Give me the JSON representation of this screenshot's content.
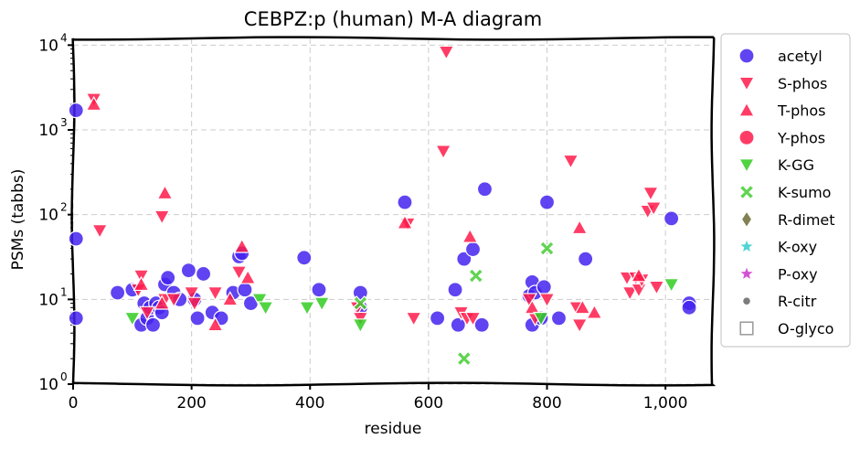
{
  "chart_data": {
    "type": "scatter",
    "title": "CEBPZ:p (human) M-A diagram",
    "xlabel": "residue",
    "ylabel": "PSMs (tabbs)",
    "xlim": [
      0,
      1080
    ],
    "ylim": [
      1,
      12000
    ],
    "yscale": "log",
    "grid": true,
    "legend_position": "outside-right",
    "x_ticks": [
      0,
      200,
      400,
      600,
      800,
      1000
    ],
    "x_tick_labels": [
      "0",
      "200",
      "400",
      "600",
      "800",
      "1,000"
    ],
    "y_ticks": [
      1,
      10,
      100,
      1000,
      10000
    ],
    "y_tick_labels": [
      "10",
      "10",
      "10",
      "10",
      "10"
    ],
    "y_tick_exponents": [
      "0",
      "1",
      "2",
      "3",
      "4"
    ],
    "series": [
      {
        "name": "acetyl",
        "marker": "circle",
        "color": "#4422ee",
        "points": [
          [
            5,
            1700
          ],
          [
            5,
            52
          ],
          [
            5,
            6
          ],
          [
            75,
            12
          ],
          [
            100,
            13
          ],
          [
            115,
            5
          ],
          [
            120,
            9
          ],
          [
            125,
            6
          ],
          [
            130,
            8
          ],
          [
            135,
            5
          ],
          [
            140,
            9
          ],
          [
            145,
            8
          ],
          [
            150,
            7
          ],
          [
            155,
            15
          ],
          [
            160,
            18
          ],
          [
            170,
            12
          ],
          [
            180,
            10
          ],
          [
            195,
            22
          ],
          [
            205,
            10
          ],
          [
            210,
            6
          ],
          [
            220,
            20
          ],
          [
            235,
            7
          ],
          [
            250,
            6
          ],
          [
            270,
            12
          ],
          [
            280,
            32
          ],
          [
            285,
            35
          ],
          [
            290,
            13
          ],
          [
            300,
            9
          ],
          [
            390,
            31
          ],
          [
            415,
            13
          ],
          [
            485,
            12
          ],
          [
            485,
            8
          ],
          [
            560,
            140
          ],
          [
            615,
            6
          ],
          [
            645,
            13
          ],
          [
            650,
            5
          ],
          [
            660,
            30
          ],
          [
            675,
            39
          ],
          [
            690,
            5
          ],
          [
            695,
            200
          ],
          [
            770,
            11
          ],
          [
            775,
            16
          ],
          [
            775,
            5
          ],
          [
            780,
            12
          ],
          [
            790,
            6
          ],
          [
            795,
            14
          ],
          [
            800,
            140
          ],
          [
            820,
            6
          ],
          [
            865,
            30
          ],
          [
            1010,
            90
          ],
          [
            1040,
            9
          ],
          [
            1040,
            8
          ]
        ]
      },
      {
        "name": "S-phos",
        "marker": "triangle-down",
        "color": "#ff1a4a",
        "points": [
          [
            35,
            2300
          ],
          [
            45,
            65
          ],
          [
            110,
            13
          ],
          [
            115,
            19
          ],
          [
            125,
            7
          ],
          [
            150,
            95
          ],
          [
            155,
            10
          ],
          [
            170,
            10
          ],
          [
            200,
            12
          ],
          [
            205,
            9
          ],
          [
            240,
            12
          ],
          [
            280,
            21
          ],
          [
            480,
            8
          ],
          [
            485,
            6
          ],
          [
            565,
            78
          ],
          [
            575,
            6
          ],
          [
            625,
            560
          ],
          [
            630,
            8300
          ],
          [
            655,
            7
          ],
          [
            665,
            6
          ],
          [
            675,
            6
          ],
          [
            770,
            10
          ],
          [
            780,
            6
          ],
          [
            800,
            10
          ],
          [
            840,
            430
          ],
          [
            850,
            8
          ],
          [
            855,
            5
          ],
          [
            935,
            18
          ],
          [
            940,
            12
          ],
          [
            950,
            18
          ],
          [
            955,
            13
          ],
          [
            960,
            17
          ],
          [
            970,
            110
          ],
          [
            975,
            180
          ],
          [
            980,
            120
          ],
          [
            985,
            14
          ]
        ]
      },
      {
        "name": "T-phos",
        "marker": "triangle-up",
        "color": "#ff1a4a",
        "points": [
          [
            35,
            2000
          ],
          [
            115,
            15
          ],
          [
            150,
            9
          ],
          [
            155,
            180
          ],
          [
            240,
            5
          ],
          [
            265,
            10
          ],
          [
            285,
            42
          ],
          [
            295,
            18
          ],
          [
            560,
            80
          ],
          [
            670,
            55
          ],
          [
            775,
            8
          ],
          [
            855,
            70
          ],
          [
            860,
            8
          ],
          [
            880,
            7
          ],
          [
            955,
            19
          ]
        ]
      },
      {
        "name": "Y-phos",
        "marker": "circle",
        "color": "#ff1a4a",
        "points": []
      },
      {
        "name": "K-GG",
        "marker": "triangle-down",
        "color": "#33cc22",
        "points": [
          [
            100,
            6
          ],
          [
            315,
            10
          ],
          [
            325,
            8
          ],
          [
            395,
            8
          ],
          [
            420,
            9
          ],
          [
            485,
            5
          ],
          [
            790,
            6
          ],
          [
            1010,
            15
          ]
        ]
      },
      {
        "name": "K-sumo",
        "marker": "x-filled",
        "color": "#44cc33",
        "points": [
          [
            485,
            9
          ],
          [
            660,
            2
          ],
          [
            680,
            19
          ],
          [
            800,
            40
          ]
        ]
      },
      {
        "name": "R-dimet",
        "marker": "diamond",
        "color": "#6b6b33",
        "points": []
      },
      {
        "name": "K-oxy",
        "marker": "star",
        "color": "#33cccc",
        "points": []
      },
      {
        "name": "P-oxy",
        "marker": "star",
        "color": "#cc33cc",
        "points": []
      },
      {
        "name": "R-citr",
        "marker": "small-circle",
        "color": "#666666",
        "points": []
      },
      {
        "name": "O-glyco",
        "marker": "square-open",
        "color": "#999999",
        "points": []
      }
    ]
  }
}
